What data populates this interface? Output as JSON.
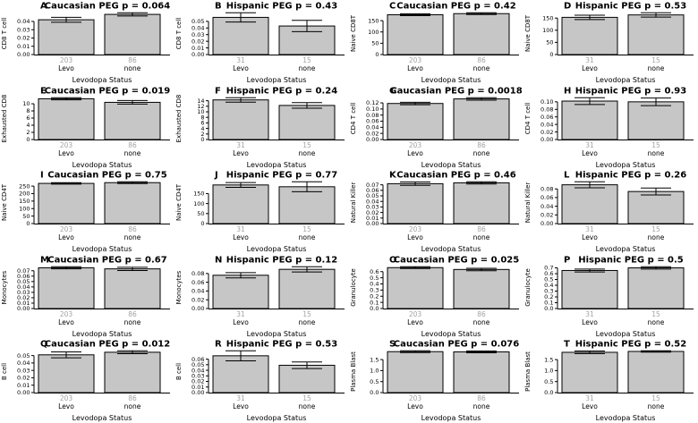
{
  "figure": {
    "background": "#ffffff",
    "bar_fill": "#c6c6c6",
    "bar_stroke": "#000000",
    "count_color": "#a3a3a3",
    "text_color": "#000000",
    "x_axis_title": "Levodopa Status"
  },
  "chart_data": [
    {
      "letter": "A",
      "type": "bar",
      "title": "Caucasian PEG p = 0.064",
      "p_value": "0.064",
      "ylabel": "CD8 T cell",
      "xlabel": "Levodopa Status",
      "categories": [
        "Levo",
        "none"
      ],
      "counts": [
        "203",
        "86"
      ],
      "values": [
        0.042,
        0.0485
      ],
      "errors": [
        0.003,
        0.002
      ],
      "yticks": [
        "0.00",
        "0.01",
        "0.02",
        "0.03",
        "0.04"
      ]
    },
    {
      "letter": "B",
      "type": "bar",
      "title": "Hispanic PEG p = 0.43",
      "p_value": "0.43",
      "ylabel": "CD8 T cell",
      "xlabel": "Levodopa Status",
      "categories": [
        "Levo",
        "none"
      ],
      "counts": [
        "31",
        "15"
      ],
      "values": [
        0.056,
        0.043
      ],
      "errors": [
        0.007,
        0.0085
      ],
      "yticks": [
        "0.00",
        "0.01",
        "0.02",
        "0.03",
        "0.04",
        "0.05"
      ]
    },
    {
      "letter": "C",
      "type": "bar",
      "title": "Caucasian PEG p = 0.42",
      "p_value": "0.42",
      "ylabel": "Naive CD8T",
      "xlabel": "Levodopa Status",
      "categories": [
        "Levo",
        "none"
      ],
      "counts": [
        "203",
        "86"
      ],
      "values": [
        176,
        181
      ],
      "errors": [
        4,
        4
      ],
      "yticks": [
        "0",
        "50",
        "100",
        "150"
      ]
    },
    {
      "letter": "D",
      "type": "bar",
      "title": "Hispanic PEG p = 0.53",
      "p_value": "0.53",
      "ylabel": "Naive CD8T",
      "xlabel": "Levodopa Status",
      "categories": [
        "Levo",
        "none"
      ],
      "counts": [
        "31",
        "15"
      ],
      "values": [
        153,
        163
      ],
      "errors": [
        9,
        9
      ],
      "yticks": [
        "0",
        "50",
        "100",
        "150"
      ]
    },
    {
      "letter": "E",
      "type": "bar",
      "title": "Caucasian PEG p = 0.019",
      "p_value": "0.019",
      "ylabel": "Exhausted CD8",
      "xlabel": "Levodopa Status",
      "categories": [
        "Levo",
        "none"
      ],
      "counts": [
        "203",
        "86"
      ],
      "values": [
        11.4,
        10.4
      ],
      "errors": [
        0.3,
        0.5
      ],
      "yticks": [
        "0",
        "2",
        "4",
        "6",
        "8",
        "10"
      ]
    },
    {
      "letter": "F",
      "type": "bar",
      "title": "Hispanic PEG p = 0.24",
      "p_value": "0.24",
      "ylabel": "Exhausted CD8",
      "xlabel": "Levodopa Status",
      "categories": [
        "Levo",
        "none"
      ],
      "counts": [
        "31",
        "15"
      ],
      "values": [
        14.3,
        12.3
      ],
      "errors": [
        0.8,
        1.0
      ],
      "yticks": [
        "0",
        "2",
        "4",
        "6",
        "8",
        "10",
        "12",
        "14"
      ]
    },
    {
      "letter": "G",
      "type": "bar",
      "title": "Caucasian PEG p = 0.0018",
      "p_value": "0.0018",
      "ylabel": "CD4 T cell",
      "xlabel": "Levodopa Status",
      "categories": [
        "Levo",
        "none"
      ],
      "counts": [
        "203",
        "86"
      ],
      "values": [
        0.118,
        0.133
      ],
      "errors": [
        0.004,
        0.004
      ],
      "yticks": [
        "0.00",
        "0.02",
        "0.04",
        "0.06",
        "0.08",
        "0.10",
        "0.12"
      ]
    },
    {
      "letter": "H",
      "type": "bar",
      "title": "Hispanic PEG p = 0.93",
      "p_value": "0.93",
      "ylabel": "CD4 T cell",
      "xlabel": "Levodopa Status",
      "categories": [
        "Levo",
        "none"
      ],
      "counts": [
        "31",
        "15"
      ],
      "values": [
        0.102,
        0.1
      ],
      "errors": [
        0.009,
        0.01
      ],
      "yticks": [
        "0.00",
        "0.02",
        "0.04",
        "0.06",
        "0.08",
        "0.10"
      ]
    },
    {
      "letter": "I",
      "type": "bar",
      "title": "Caucasian PEG p = 0.75",
      "p_value": "0.75",
      "ylabel": "Naive CD4T",
      "xlabel": "Levodopa Status",
      "categories": [
        "Levo",
        "none"
      ],
      "counts": [
        "203",
        "86"
      ],
      "values": [
        268,
        273
      ],
      "errors": [
        5,
        6
      ],
      "yticks": [
        "0",
        "50",
        "100",
        "150",
        "200",
        "250"
      ]
    },
    {
      "letter": "J",
      "type": "bar",
      "title": "Hispanic PEG p = 0.77",
      "p_value": "0.77",
      "ylabel": "Naive CD4T",
      "xlabel": "Levodopa Status",
      "categories": [
        "Levo",
        "none"
      ],
      "counts": [
        "31",
        "15"
      ],
      "values": [
        193,
        184
      ],
      "errors": [
        12,
        25
      ],
      "yticks": [
        "0",
        "50",
        "100",
        "150"
      ]
    },
    {
      "letter": "K",
      "type": "bar",
      "title": "Caucasian PEG p = 0.46",
      "p_value": "0.46",
      "ylabel": "Natural Killer",
      "xlabel": "Levodopa Status",
      "categories": [
        "Levo",
        "none"
      ],
      "counts": [
        "203",
        "86"
      ],
      "values": [
        0.072,
        0.0735
      ],
      "errors": [
        0.003,
        0.002
      ],
      "yticks": [
        "0.00",
        "0.01",
        "0.02",
        "0.03",
        "0.04",
        "0.05",
        "0.06",
        "0.07"
      ]
    },
    {
      "letter": "L",
      "type": "bar",
      "title": "Hispanic PEG p = 0.26",
      "p_value": "0.26",
      "ylabel": "Natural Killer",
      "xlabel": "Levodopa Status",
      "categories": [
        "Levo",
        "none"
      ],
      "counts": [
        "31",
        "15"
      ],
      "values": [
        0.0895,
        0.074
      ],
      "errors": [
        0.007,
        0.008
      ],
      "yticks": [
        "0.00",
        "0.02",
        "0.04",
        "0.06",
        "0.08"
      ]
    },
    {
      "letter": "M",
      "type": "bar",
      "title": "Caucasian PEG p = 0.67",
      "p_value": "0.67",
      "ylabel": "Monocytes",
      "xlabel": "Levodopa Status",
      "categories": [
        "Levo",
        "none"
      ],
      "counts": [
        "203",
        "86"
      ],
      "values": [
        0.0755,
        0.0735
      ],
      "errors": [
        0.002,
        0.003
      ],
      "yticks": [
        "0.00",
        "0.01",
        "0.02",
        "0.03",
        "0.04",
        "0.05",
        "0.06",
        "0.07"
      ]
    },
    {
      "letter": "N",
      "type": "bar",
      "title": "Hispanic PEG p = 0.12",
      "p_value": "0.12",
      "ylabel": "Monocytes",
      "xlabel": "Levodopa Status",
      "categories": [
        "Levo",
        "none"
      ],
      "counts": [
        "31",
        "15"
      ],
      "values": [
        0.076,
        0.0895
      ],
      "errors": [
        0.006,
        0.006
      ],
      "yticks": [
        "0.00",
        "0.02",
        "0.04",
        "0.06",
        "0.08"
      ]
    },
    {
      "letter": "O",
      "type": "bar",
      "title": "Caucasian PEG p = 0.025",
      "p_value": "0.025",
      "ylabel": "Granulocyte",
      "xlabel": "Levodopa Status",
      "categories": [
        "Levo",
        "none"
      ],
      "counts": [
        "203",
        "86"
      ],
      "values": [
        0.665,
        0.635
      ],
      "errors": [
        0.015,
        0.02
      ],
      "yticks": [
        "0.0",
        "0.1",
        "0.2",
        "0.3",
        "0.4",
        "0.5",
        "0.6"
      ]
    },
    {
      "letter": "P",
      "type": "bar",
      "title": "Hispanic PEG p = 0.5",
      "p_value": "0.5",
      "ylabel": "Granulocyte",
      "xlabel": "Levodopa Status",
      "categories": [
        "Levo",
        "none"
      ],
      "counts": [
        "31",
        "15"
      ],
      "values": [
        0.655,
        0.7
      ],
      "errors": [
        0.025,
        0.02
      ],
      "yticks": [
        "0.0",
        "0.1",
        "0.2",
        "0.3",
        "0.4",
        "0.5",
        "0.6",
        "0.7"
      ]
    },
    {
      "letter": "Q",
      "type": "bar",
      "title": "Caucasian PEG p = 0.012",
      "p_value": "0.012",
      "ylabel": "B cell",
      "xlabel": "Levodopa Status",
      "categories": [
        "Levo",
        "none"
      ],
      "counts": [
        "203",
        "86"
      ],
      "values": [
        0.051,
        0.0545
      ],
      "errors": [
        0.004,
        0.002
      ],
      "yticks": [
        "0.00",
        "0.01",
        "0.02",
        "0.03",
        "0.04",
        "0.05"
      ]
    },
    {
      "letter": "R",
      "type": "bar",
      "title": "Hispanic PEG p = 0.53",
      "p_value": "0.53",
      "ylabel": "B cell",
      "xlabel": "Levodopa Status",
      "categories": [
        "Levo",
        "none"
      ],
      "counts": [
        "31",
        "15"
      ],
      "values": [
        0.066,
        0.049
      ],
      "errors": [
        0.009,
        0.006
      ],
      "yticks": [
        "0.00",
        "0.01",
        "0.02",
        "0.03",
        "0.04",
        "0.05",
        "0.06"
      ]
    },
    {
      "letter": "S",
      "type": "bar",
      "title": "Caucasian PEG p = 0.076",
      "p_value": "0.076",
      "ylabel": "Plasma Blast",
      "xlabel": "Levodopa Status",
      "categories": [
        "Levo",
        "none"
      ],
      "counts": [
        "203",
        "86"
      ],
      "values": [
        1.86,
        1.85
      ],
      "errors": [
        0.04,
        0.04
      ],
      "yticks": [
        "0.0",
        "0.5",
        "1.0",
        "1.5"
      ]
    },
    {
      "letter": "T",
      "type": "bar",
      "title": "Hispanic PEG p = 0.52",
      "p_value": "0.52",
      "ylabel": "Plasma Blast",
      "xlabel": "Levodopa Status",
      "categories": [
        "Levo",
        "none"
      ],
      "counts": [
        "31",
        "15"
      ],
      "values": [
        1.83,
        1.87
      ],
      "errors": [
        0.06,
        0.03
      ],
      "yticks": [
        "0.0",
        "0.5",
        "1.0",
        "1.5"
      ]
    }
  ]
}
